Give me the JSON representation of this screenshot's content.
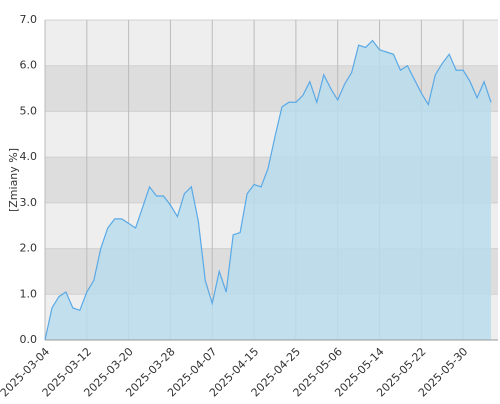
{
  "chart_data": {
    "type": "area",
    "y_label": "[Zmiany %]",
    "categories": [
      "2025-03-04",
      null,
      null,
      null,
      null,
      null,
      "2025-03-12",
      null,
      null,
      null,
      null,
      null,
      "2025-03-20",
      null,
      null,
      null,
      null,
      null,
      "2025-03-28",
      null,
      null,
      null,
      null,
      null,
      "2025-04-07",
      null,
      null,
      null,
      null,
      null,
      "2025-04-15",
      null,
      null,
      null,
      null,
      null,
      "2025-04-25",
      null,
      null,
      null,
      null,
      null,
      "2025-05-06",
      null,
      null,
      null,
      null,
      null,
      "2025-05-14",
      null,
      null,
      null,
      null,
      null,
      "2025-05-22",
      null,
      null,
      null,
      null,
      null,
      "2025-05-30",
      null,
      null,
      null,
      null
    ],
    "values": [
      0.0,
      0.7,
      0.95,
      1.05,
      0.7,
      0.65,
      1.05,
      1.3,
      2.0,
      2.45,
      2.65,
      2.65,
      2.55,
      2.45,
      2.9,
      3.35,
      3.15,
      3.15,
      2.95,
      2.7,
      3.2,
      3.35,
      2.6,
      1.3,
      0.8,
      1.5,
      1.05,
      2.3,
      2.35,
      3.2,
      3.4,
      3.35,
      3.75,
      4.45,
      5.1,
      5.2,
      5.2,
      5.35,
      5.65,
      5.2,
      5.8,
      5.5,
      5.25,
      5.6,
      5.85,
      6.45,
      6.4,
      6.55,
      6.35,
      6.3,
      6.25,
      5.9,
      6.0,
      5.7,
      5.4,
      5.15,
      5.8,
      6.05,
      6.25,
      5.9,
      5.9,
      5.65,
      5.3,
      5.65,
      5.2
    ],
    "color": "#5aa9e6",
    "fill": "#b9dcec",
    "ylim": [
      0,
      7
    ],
    "yticks": [
      {
        "value": 0,
        "label": "0.0"
      },
      {
        "value": 1,
        "label": "1.0"
      },
      {
        "value": 2,
        "label": "2.0"
      },
      {
        "value": 3,
        "label": "3.0"
      },
      {
        "value": 4,
        "label": "4.0"
      },
      {
        "value": 5,
        "label": "5.0"
      },
      {
        "value": 6,
        "label": "6.0"
      },
      {
        "value": 7,
        "label": "7.0"
      }
    ],
    "grid": true
  }
}
